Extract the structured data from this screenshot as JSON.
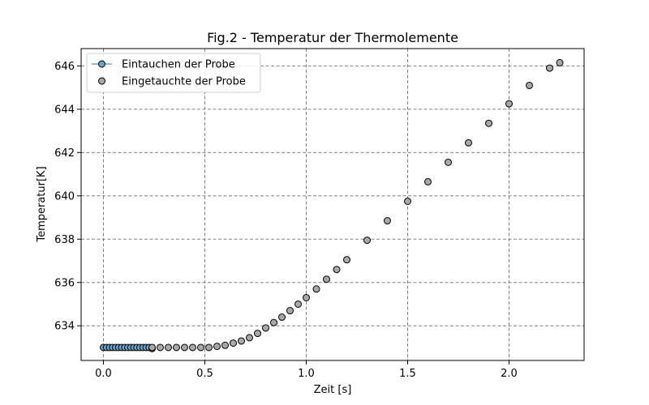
{
  "chart_data": {
    "type": "scatter",
    "title": "Fig.2 - Temperatur der Thermolemente",
    "xlabel": "Zeit [s]",
    "ylabel": "Temperatur[K]",
    "xlim": [
      -0.11,
      2.37
    ],
    "ylim": [
      632.4,
      646.8
    ],
    "xticks": [
      0.0,
      0.5,
      1.0,
      1.5,
      2.0
    ],
    "xtick_labels": [
      "0.0",
      "0.5",
      "1.0",
      "1.5",
      "2.0"
    ],
    "yticks": [
      634,
      636,
      638,
      640,
      642,
      644,
      646
    ],
    "ytick_labels": [
      "634",
      "636",
      "638",
      "640",
      "642",
      "644",
      "646"
    ],
    "grid": true,
    "legend_position": "top-left",
    "series": [
      {
        "name": "Eintauchen der Probe",
        "color": "#6fa3c7",
        "edge_color": "#000000",
        "marker": "circle",
        "line": true,
        "x": [
          0.0,
          0.015,
          0.03,
          0.045,
          0.06,
          0.075,
          0.09,
          0.105,
          0.12,
          0.135,
          0.15,
          0.165,
          0.18,
          0.195,
          0.21,
          0.225,
          0.24
        ],
        "y": [
          633.0,
          633.0,
          633.0,
          633.0,
          633.0,
          633.0,
          633.0,
          633.0,
          633.0,
          633.0,
          633.0,
          633.0,
          633.0,
          633.0,
          633.0,
          633.0,
          632.95
        ]
      },
      {
        "name": "Eingetauchte der Probe",
        "color": "#a8a8a8",
        "edge_color": "#000000",
        "marker": "circle",
        "line": false,
        "x": [
          0.24,
          0.28,
          0.32,
          0.36,
          0.4,
          0.44,
          0.48,
          0.52,
          0.56,
          0.6,
          0.64,
          0.68,
          0.72,
          0.76,
          0.8,
          0.84,
          0.88,
          0.92,
          0.96,
          1.0,
          1.05,
          1.1,
          1.15,
          1.2,
          1.3,
          1.4,
          1.5,
          1.6,
          1.7,
          1.8,
          1.9,
          2.0,
          2.1,
          2.2,
          2.25
        ],
        "y": [
          633.0,
          633.0,
          633.0,
          633.0,
          633.0,
          633.0,
          633.0,
          633.0,
          633.05,
          633.1,
          633.2,
          633.3,
          633.45,
          633.65,
          633.9,
          634.15,
          634.4,
          634.7,
          635.0,
          635.3,
          635.7,
          636.15,
          636.6,
          637.05,
          637.95,
          638.85,
          639.75,
          640.65,
          641.55,
          642.45,
          643.35,
          644.25,
          645.1,
          645.9,
          646.15
        ]
      }
    ]
  }
}
